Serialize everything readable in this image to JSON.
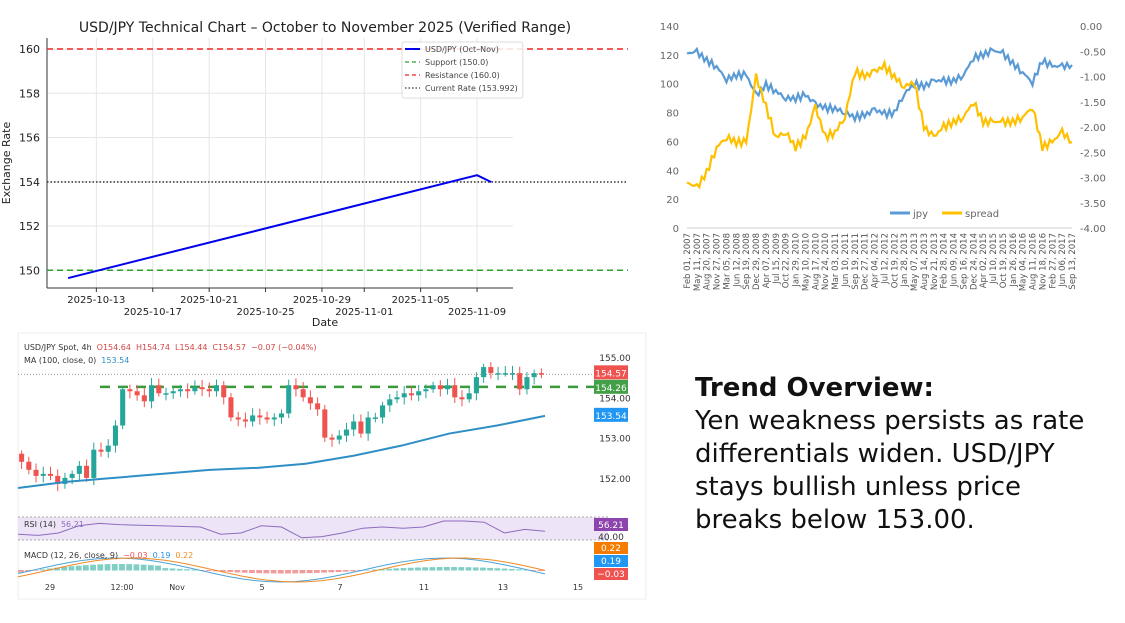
{
  "chart_data": [
    {
      "type": "line",
      "title": "USD/JPY Technical Chart – October to November 2025 (Verified Range)",
      "xlabel": "Date",
      "ylabel": "Exchange Rate",
      "xticks": [
        "2025-10-13",
        "2025-10-17",
        "2025-10-21",
        "2025-10-25",
        "2025-10-29",
        "2025-11-01",
        "2025-11-05",
        "2025-11-09"
      ],
      "yticks": [
        150,
        152,
        154,
        156,
        158,
        160
      ],
      "ylim": [
        149.2,
        160.5
      ],
      "grid": true,
      "legend_placement": "top-right",
      "series": [
        {
          "name": "USD/JPY (Oct–Nov)",
          "color": "#0000ee",
          "x": [
            "2025-10-11",
            "2025-11-09",
            "2025-11-10"
          ],
          "y": [
            149.65,
            154.3,
            153.992
          ]
        }
      ],
      "hlines": [
        {
          "name": "Support (150.0)",
          "value": 150.0,
          "color": "#2ca02c",
          "style": "dashed"
        },
        {
          "name": "Resistance (160.0)",
          "value": 160.0,
          "color": "#ee2222",
          "style": "dashed"
        },
        {
          "name": "Current Rate (153.992)",
          "value": 153.992,
          "color": "#333333",
          "style": "dotted"
        }
      ]
    },
    {
      "type": "line",
      "left_yticks": [
        "0",
        "20",
        "40",
        "60",
        "80",
        "100",
        "120",
        "140"
      ],
      "right_yticks": [
        "0.00",
        "-0.50",
        "-1.00",
        "-1.50",
        "-2.00",
        "-2.50",
        "-3.00",
        "-3.50",
        "-4.00"
      ],
      "left_ylim": [
        0,
        140
      ],
      "right_ylim": [
        -4,
        0
      ],
      "legend_placement": "bottom-center",
      "x": [
        "Feb 01, 2007",
        "May 11, 2007",
        "Aug 20, 2007",
        "Nov 27, 2007",
        "Mar 05, 2008",
        "Jun 12, 2008",
        "Sep 19, 2008",
        "Dec 29, 2008",
        "Apr 07, 2009",
        "Jul 15, 2009",
        "Oct 22, 2009",
        "Jan 29, 2010",
        "May 10, 2010",
        "Aug 17, 2010",
        "Nov 24, 2010",
        "Mar 03, 2011",
        "Jun 10, 2011",
        "Sep 19, 2011",
        "Dec 27, 2011",
        "Apr 04, 2012",
        "Jul 12, 2012",
        "Oct 19, 2012",
        "Jan 28, 2013",
        "May 07, 2013",
        "Aug 14, 2013",
        "Nov 21, 2013",
        "Feb 28, 2014",
        "Jun 09, 2014",
        "Sep 16, 2014",
        "Dec 24, 2014",
        "Apr 02, 2015",
        "Jul 10, 2015",
        "Oct 19, 2015",
        "Jan 26, 2016",
        "May 04, 2016",
        "Aug 11, 2016",
        "Nov 18, 2016",
        "Feb 27, 2017",
        "Jun 06, 2017",
        "Sep 13, 2017"
      ],
      "series": [
        {
          "name": "jpy",
          "axis": "left",
          "color": "#5b9bd5",
          "values": [
            121,
            122,
            116,
            112,
            103,
            106,
            106,
            92,
            99,
            95,
            90,
            90,
            92,
            86,
            83,
            83,
            80,
            77,
            78,
            82,
            79,
            80,
            93,
            100,
            98,
            102,
            102,
            102,
            106,
            118,
            120,
            123,
            121,
            114,
            108,
            101,
            116,
            112,
            112,
            113
          ]
        },
        {
          "name": "spread",
          "axis": "right",
          "color": "#ffc000",
          "values": [
            -3.1,
            -3.2,
            -2.9,
            -2.4,
            -2.2,
            -2.3,
            -2.3,
            -1.0,
            -1.6,
            -2.2,
            -2.1,
            -2.4,
            -2.2,
            -1.6,
            -2.2,
            -2.1,
            -1.8,
            -0.9,
            -1.0,
            -0.9,
            -0.8,
            -1.0,
            -1.2,
            -1.1,
            -2.0,
            -2.2,
            -2.0,
            -1.9,
            -1.8,
            -1.5,
            -1.9,
            -1.9,
            -1.9,
            -1.9,
            -1.8,
            -1.6,
            -2.4,
            -2.3,
            -2.1,
            -2.3
          ]
        }
      ]
    },
    {
      "type": "candlestick",
      "header": {
        "symbol": "USD/JPY Spot, 4h",
        "open": "O154.64",
        "high": "H154.74",
        "low": "L154.44",
        "close": "C154.57",
        "change": "−0.07 (−0.04%)"
      },
      "ma_label": "MA (100, close, 0)",
      "ma_value": "153.54",
      "price_ticks": [
        "155.00",
        "154.00",
        "153.00",
        "152.00"
      ],
      "badges": {
        "last": "154.57",
        "support": "154.26",
        "ma": "153.54"
      },
      "support_level": 154.26,
      "up_color": "#26a69a",
      "down_color": "#ef5350",
      "ma_color": "#2f8fc4",
      "closes": [
        152.4,
        152.2,
        152.05,
        152.1,
        152.05,
        151.85,
        152.0,
        152.1,
        152.3,
        152.0,
        152.7,
        152.65,
        152.8,
        153.3,
        154.2,
        154.15,
        154.05,
        153.9,
        154.3,
        154.1,
        154.1,
        154.15,
        154.2,
        154.15,
        154.25,
        154.2,
        154.15,
        154.3,
        154.0,
        153.5,
        153.45,
        153.4,
        153.55,
        153.5,
        153.45,
        153.5,
        153.6,
        154.3,
        154.2,
        154.0,
        153.85,
        153.7,
        153.0,
        152.95,
        153.05,
        153.2,
        153.4,
        153.1,
        153.5,
        153.5,
        153.8,
        153.95,
        154.0,
        154.1,
        154.05,
        154.15,
        154.2,
        154.3,
        154.2,
        154.3,
        154.0,
        153.95,
        154.1,
        154.5,
        154.75,
        154.6,
        154.6,
        154.6,
        154.6,
        154.2,
        154.5,
        154.6,
        154.57
      ],
      "ma": [
        151.75,
        151.9,
        152.0,
        152.1,
        152.2,
        152.25,
        152.35,
        152.55,
        152.8,
        153.1,
        153.3,
        153.54
      ],
      "rsi_label": "RSI (14)",
      "rsi_value": "56.21",
      "rsi_level": "40.00",
      "rsi": [
        48,
        46,
        50,
        62,
        66,
        64,
        63,
        62,
        61,
        60,
        48,
        50,
        62,
        60,
        42,
        44,
        50,
        58,
        60,
        58,
        60,
        70,
        70,
        68,
        50,
        56,
        53
      ],
      "macd_label": "MACD (12, 26, close, 9)",
      "macd_values": {
        "hist": "−0.03",
        "macd": "0.19",
        "signal": "0.22"
      },
      "macd_badges": [
        "0.22",
        "0.19",
        "−0.03"
      ],
      "x_labels": [
        "29",
        "12:00",
        "Nov",
        "5",
        "7",
        "11",
        "13",
        "15"
      ]
    }
  ],
  "text": {
    "heading": "Trend Overview:",
    "body": "Yen weakness persists as rate differentials widen. USD/JPY stays bullish unless price breaks below 153.00."
  }
}
